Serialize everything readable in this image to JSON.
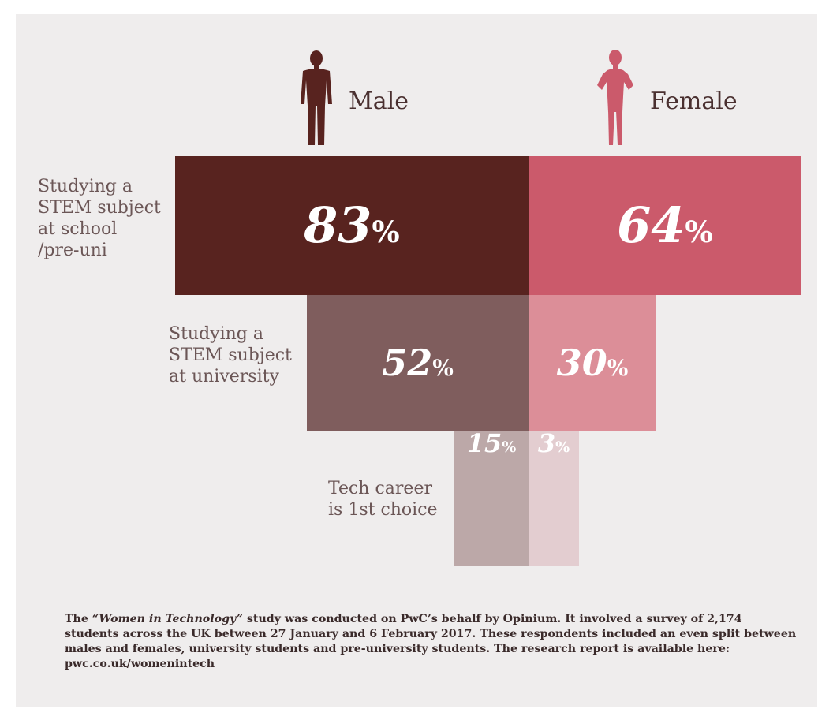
{
  "colors": {
    "male_dark": "#58231f",
    "female_dark": "#cb5a6b",
    "male_mid": "#7f5d5d",
    "female_mid": "#dc8e98",
    "male_light": "#bca8a8",
    "female_light": "#e3cdd0"
  },
  "legend": {
    "male_label": "Male",
    "female_label": "Female",
    "male_icon": "man-silhouette-icon",
    "female_icon": "woman-silhouette-icon"
  },
  "chart_data": {
    "type": "bar",
    "title": "",
    "categories": [
      "Studying a STEM subject at school /pre-uni",
      "Studying a STEM subject at university",
      "Tech career is 1st choice"
    ],
    "category_lines": [
      [
        "Studying a",
        "STEM subject",
        "at school",
        "/pre-uni"
      ],
      [
        "Studying a",
        "STEM subject",
        "at university"
      ],
      [
        "Tech career",
        "is 1st choice"
      ]
    ],
    "series": [
      {
        "name": "Male",
        "values": [
          83,
          52,
          15
        ]
      },
      {
        "name": "Female",
        "values": [
          64,
          30,
          3
        ]
      }
    ],
    "value_suffix": "%",
    "xlabel": "",
    "ylabel": "",
    "layout": "diverging-funnel"
  },
  "footnote": {
    "prefix": "The ",
    "study_name": "“Women in Technology”",
    "rest": " study was conducted on PwC’s behalf by Opinium. It involved a survey of 2,174 students across the UK between 27 January and 6 February 2017. These respondents included an even split between males and females, university students and pre-university students. The research report is available here: pwc.co.uk/womenintech"
  }
}
